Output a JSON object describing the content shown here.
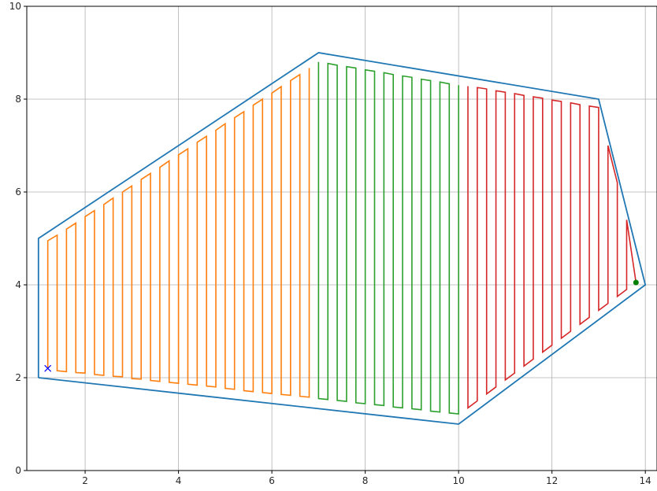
{
  "chart_data": {
    "type": "line",
    "title": "",
    "xlabel": "",
    "ylabel": "",
    "xlim": [
      0.75,
      14.25
    ],
    "ylim": [
      0,
      10
    ],
    "xticks": [
      2,
      4,
      6,
      8,
      10,
      12,
      14
    ],
    "yticks": [
      0,
      2,
      4,
      6,
      8,
      10
    ],
    "grid": true,
    "colors": {
      "boundary": "#1f77b4",
      "orange": "#ff7f0e",
      "green": "#2ca02c",
      "red": "#d62728",
      "start_marker": "#0000ff",
      "end_marker": "#008000"
    },
    "boundary_polygon": [
      [
        1,
        2
      ],
      [
        10,
        1
      ],
      [
        14,
        4
      ],
      [
        13,
        8
      ],
      [
        7,
        9
      ],
      [
        1,
        5
      ],
      [
        1,
        2
      ]
    ],
    "series": [
      {
        "color": "orange",
        "points": [
          [
            1.2,
            2.2
          ],
          [
            1.2,
            4.95
          ],
          [
            1.4,
            5.07
          ],
          [
            1.4,
            2.15
          ],
          [
            1.6,
            2.13
          ],
          [
            1.6,
            5.2
          ],
          [
            1.8,
            5.33
          ],
          [
            1.8,
            2.11
          ],
          [
            2.0,
            2.1
          ],
          [
            2.0,
            5.47
          ],
          [
            2.2,
            5.6
          ],
          [
            2.2,
            2.07
          ],
          [
            2.4,
            2.05
          ],
          [
            2.4,
            5.73
          ],
          [
            2.6,
            5.87
          ],
          [
            2.6,
            2.03
          ],
          [
            2.8,
            2.02
          ],
          [
            2.8,
            6.0
          ],
          [
            3.0,
            6.13
          ],
          [
            3.0,
            1.98
          ],
          [
            3.2,
            1.97
          ],
          [
            3.2,
            6.27
          ],
          [
            3.4,
            6.4
          ],
          [
            3.4,
            1.94
          ],
          [
            3.6,
            1.92
          ],
          [
            3.6,
            6.53
          ],
          [
            3.8,
            6.67
          ],
          [
            3.8,
            1.9
          ],
          [
            4.0,
            1.88
          ],
          [
            4.0,
            6.8
          ],
          [
            4.2,
            6.93
          ],
          [
            4.2,
            1.86
          ],
          [
            4.4,
            1.84
          ],
          [
            4.4,
            7.07
          ],
          [
            4.6,
            7.2
          ],
          [
            4.6,
            1.82
          ],
          [
            4.8,
            1.8
          ],
          [
            4.8,
            7.33
          ],
          [
            5.0,
            7.47
          ],
          [
            5.0,
            1.77
          ],
          [
            5.2,
            1.75
          ],
          [
            5.2,
            7.6
          ],
          [
            5.4,
            7.73
          ],
          [
            5.4,
            1.72
          ],
          [
            5.6,
            1.7
          ],
          [
            5.6,
            7.87
          ],
          [
            5.8,
            8.0
          ],
          [
            5.8,
            1.68
          ],
          [
            6.0,
            1.66
          ],
          [
            6.0,
            8.13
          ],
          [
            6.2,
            8.27
          ],
          [
            6.2,
            1.64
          ],
          [
            6.4,
            1.62
          ],
          [
            6.4,
            8.4
          ],
          [
            6.6,
            8.53
          ],
          [
            6.6,
            1.6
          ],
          [
            6.8,
            1.58
          ],
          [
            6.8,
            8.67
          ]
        ]
      },
      {
        "color": "green",
        "points": [
          [
            7.0,
            8.8
          ],
          [
            7.0,
            1.55
          ],
          [
            7.2,
            1.53
          ],
          [
            7.2,
            8.77
          ],
          [
            7.4,
            8.73
          ],
          [
            7.4,
            1.51
          ],
          [
            7.6,
            1.49
          ],
          [
            7.6,
            8.7
          ],
          [
            7.8,
            8.67
          ],
          [
            7.8,
            1.46
          ],
          [
            8.0,
            1.44
          ],
          [
            8.0,
            8.63
          ],
          [
            8.2,
            8.6
          ],
          [
            8.2,
            1.42
          ],
          [
            8.4,
            1.4
          ],
          [
            8.4,
            8.57
          ],
          [
            8.6,
            8.53
          ],
          [
            8.6,
            1.37
          ],
          [
            8.8,
            1.35
          ],
          [
            8.8,
            8.5
          ],
          [
            9.0,
            8.47
          ],
          [
            9.0,
            1.33
          ],
          [
            9.2,
            1.31
          ],
          [
            9.2,
            8.43
          ],
          [
            9.4,
            8.4
          ],
          [
            9.4,
            1.28
          ],
          [
            9.6,
            1.26
          ],
          [
            9.6,
            8.37
          ],
          [
            9.8,
            8.33
          ],
          [
            9.8,
            1.24
          ],
          [
            10.0,
            1.22
          ],
          [
            10.0,
            8.3
          ]
        ]
      },
      {
        "color": "red",
        "points": [
          [
            10.2,
            8.28
          ],
          [
            10.2,
            1.35
          ],
          [
            10.4,
            1.5
          ],
          [
            10.4,
            8.25
          ],
          [
            10.6,
            8.22
          ],
          [
            10.6,
            1.65
          ],
          [
            10.8,
            1.8
          ],
          [
            10.8,
            8.18
          ],
          [
            11.0,
            8.15
          ],
          [
            11.0,
            1.95
          ],
          [
            11.2,
            2.1
          ],
          [
            11.2,
            8.12
          ],
          [
            11.4,
            8.08
          ],
          [
            11.4,
            2.25
          ],
          [
            11.6,
            2.4
          ],
          [
            11.6,
            8.05
          ],
          [
            11.8,
            8.02
          ],
          [
            11.8,
            2.55
          ],
          [
            12.0,
            2.7
          ],
          [
            12.0,
            7.98
          ],
          [
            12.2,
            7.95
          ],
          [
            12.2,
            2.85
          ],
          [
            12.4,
            3.0
          ],
          [
            12.4,
            7.92
          ],
          [
            12.6,
            7.88
          ],
          [
            12.6,
            3.15
          ],
          [
            12.8,
            3.3
          ],
          [
            12.8,
            7.85
          ],
          [
            13.0,
            7.82
          ],
          [
            13.0,
            3.45
          ],
          [
            13.2,
            3.6
          ],
          [
            13.2,
            7.0
          ],
          [
            13.4,
            6.2
          ],
          [
            13.4,
            3.75
          ],
          [
            13.6,
            3.9
          ],
          [
            13.6,
            5.4
          ],
          [
            13.8,
            4.05
          ]
        ]
      }
    ],
    "start_point": [
      1.2,
      2.2
    ],
    "end_point": [
      13.8,
      4.05
    ]
  }
}
